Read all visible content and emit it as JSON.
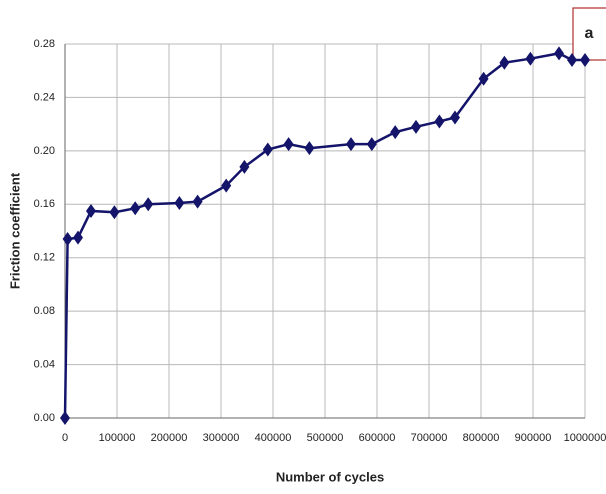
{
  "chart_data": {
    "type": "line",
    "annotation": "a",
    "x_label": "Number of cycles",
    "y_label": "Friction coefficient",
    "x": [
      0,
      5000,
      25000,
      50000,
      95000,
      135000,
      160000,
      220000,
      255000,
      310000,
      345000,
      390000,
      430000,
      470000,
      550000,
      590000,
      635000,
      675000,
      720000,
      750000,
      805000,
      845000,
      895000,
      950000,
      975000,
      1000000
    ],
    "series": [
      {
        "color": "#14146b",
        "values": [
          0,
          0.134,
          0.135,
          0.155,
          0.154,
          0.157,
          0.16,
          0.161,
          0.162,
          0.174,
          0.188,
          0.201,
          0.205,
          0.202,
          0.205,
          0.205,
          0.214,
          0.218,
          0.222,
          0.225,
          0.254,
          0.266,
          0.269,
          0.273,
          0.268,
          0.268
        ]
      }
    ],
    "xlim": [
      0,
      1000000
    ],
    "xticks": [
      0,
      100000,
      200000,
      300000,
      400000,
      500000,
      600000,
      700000,
      800000,
      900000,
      1000000
    ],
    "ylim": [
      0,
      0.28
    ],
    "yticks": [
      {
        "value": 0,
        "label": "0.00"
      },
      {
        "value": 0.04,
        "label": "0.04"
      },
      {
        "value": 0.08,
        "label": "0.08"
      },
      {
        "value": 0.12,
        "label": "0.12"
      },
      {
        "value": 0.16,
        "label": "0.16"
      },
      {
        "value": 0.2,
        "label": "0.20"
      },
      {
        "value": 0.24,
        "label": "0.24"
      },
      {
        "value": 0.28,
        "label": "0.28"
      }
    ],
    "grid": true
  }
}
